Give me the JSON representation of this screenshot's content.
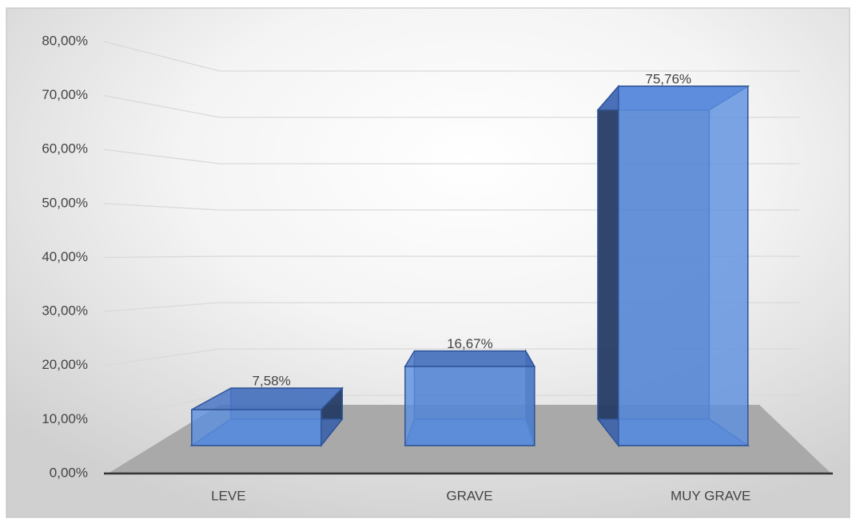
{
  "chart_data": {
    "type": "bar3d",
    "categories": [
      "LEVE",
      "GRAVE",
      "MUY GRAVE"
    ],
    "values": [
      7.58,
      16.67,
      75.76
    ],
    "value_labels": [
      "7,58%",
      "16,67%",
      "75,76%"
    ],
    "color": "#5b8ee0",
    "ylim": [
      0,
      80
    ],
    "yticks": [
      {
        "value": 0,
        "label": "0,00%"
      },
      {
        "value": 10,
        "label": "10,00%"
      },
      {
        "value": 20,
        "label": "20,00%"
      },
      {
        "value": 30,
        "label": "30,00%"
      },
      {
        "value": 40,
        "label": "40,00%"
      },
      {
        "value": 50,
        "label": "50,00%"
      },
      {
        "value": 60,
        "label": "60,00%"
      },
      {
        "value": 70,
        "label": "70,00%"
      },
      {
        "value": 80,
        "label": "80,00%"
      }
    ],
    "grid": true
  }
}
